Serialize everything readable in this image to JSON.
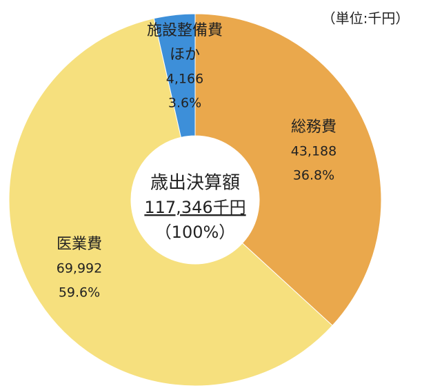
{
  "chart_data": {
    "type": "donut",
    "unit_note": "（単位:千円）",
    "categories": [
      [
        "総務費"
      ],
      [
        "医業費"
      ],
      [
        "施設整備費",
        "ほか"
      ]
    ],
    "values": [
      43188,
      69992,
      4166
    ],
    "value_labels": [
      "43,188",
      "69,992",
      "4,166"
    ],
    "percents": [
      36.8,
      59.6,
      3.6
    ],
    "percent_labels": [
      "36.8%",
      "59.6%",
      "3.6%"
    ],
    "colors": [
      "#eaa84c",
      "#f6e07e",
      "#3d8fd9"
    ],
    "center": {
      "label": "歳出決算額",
      "total": "117,346千円",
      "share": "（100%）"
    }
  }
}
